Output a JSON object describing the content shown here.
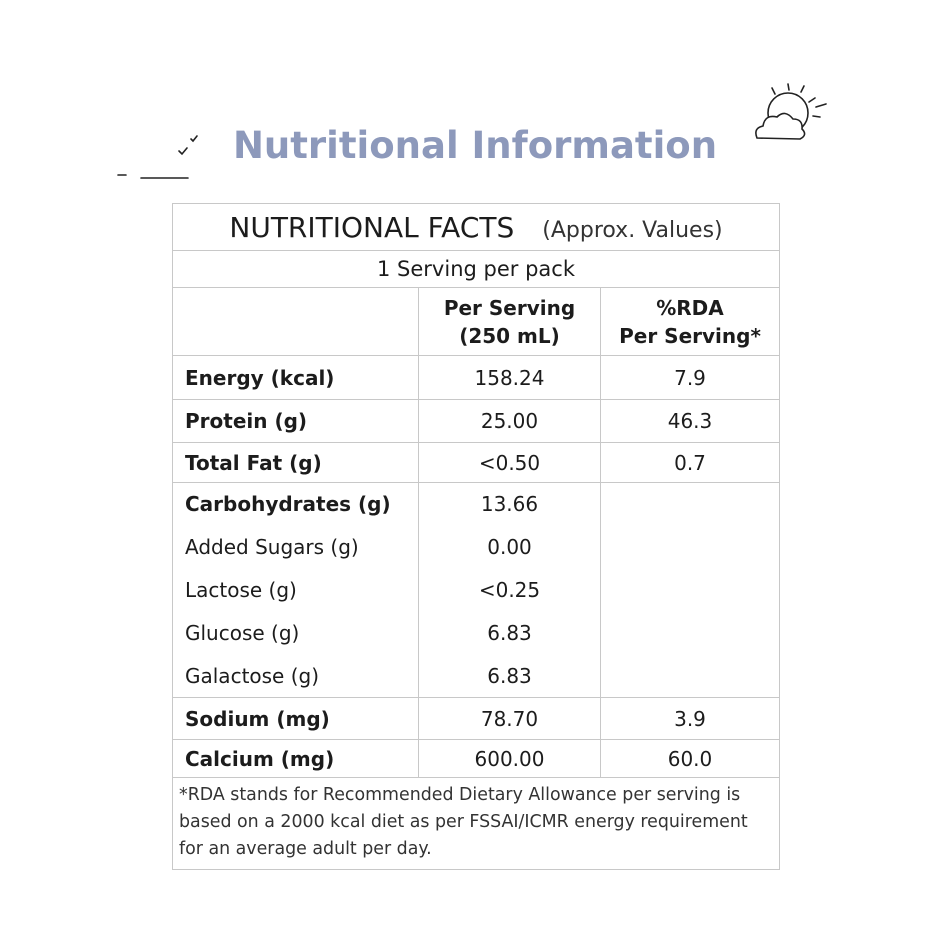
{
  "header": {
    "title": "Nutritional Information"
  },
  "table": {
    "title": "NUTRITIONAL FACTS",
    "note": "(Approx. Values)",
    "servings": "1 Serving per pack",
    "columns": [
      [
        "Per Serving",
        "(250 mL)"
      ],
      [
        "%RDA",
        "Per Serving*"
      ]
    ],
    "rows": [
      {
        "label": "Energy (kcal)",
        "per_serving": "158.24",
        "rda": "7.9"
      },
      {
        "label": "Protein (g)",
        "per_serving": "25.00",
        "rda": "46.3"
      },
      {
        "label": "Total Fat (g)",
        "per_serving": "<0.50",
        "rda": "0.7"
      },
      {
        "label": "Carbohydrates (g)",
        "per_serving": "13.66",
        "components": [
          {
            "label": "Added Sugars (g)",
            "per_serving": "0.00"
          },
          {
            "label": "Lactose (g)",
            "per_serving": "<0.25"
          },
          {
            "label": "Glucose (g)",
            "per_serving": "6.83"
          },
          {
            "label": "Galactose (g)",
            "per_serving": "6.83"
          }
        ]
      },
      {
        "label": "Sodium (mg)",
        "per_serving": "78.70",
        "rda": "3.9"
      },
      {
        "label": "Calcium (mg)",
        "per_serving": "600.00",
        "rda": "60.0"
      }
    ],
    "footnote": "*RDA stands for Recommended Dietary Allowance per serving is based on a 2000 kcal diet as per FSSAI/ICMR energy requirement for an average adult per day."
  }
}
